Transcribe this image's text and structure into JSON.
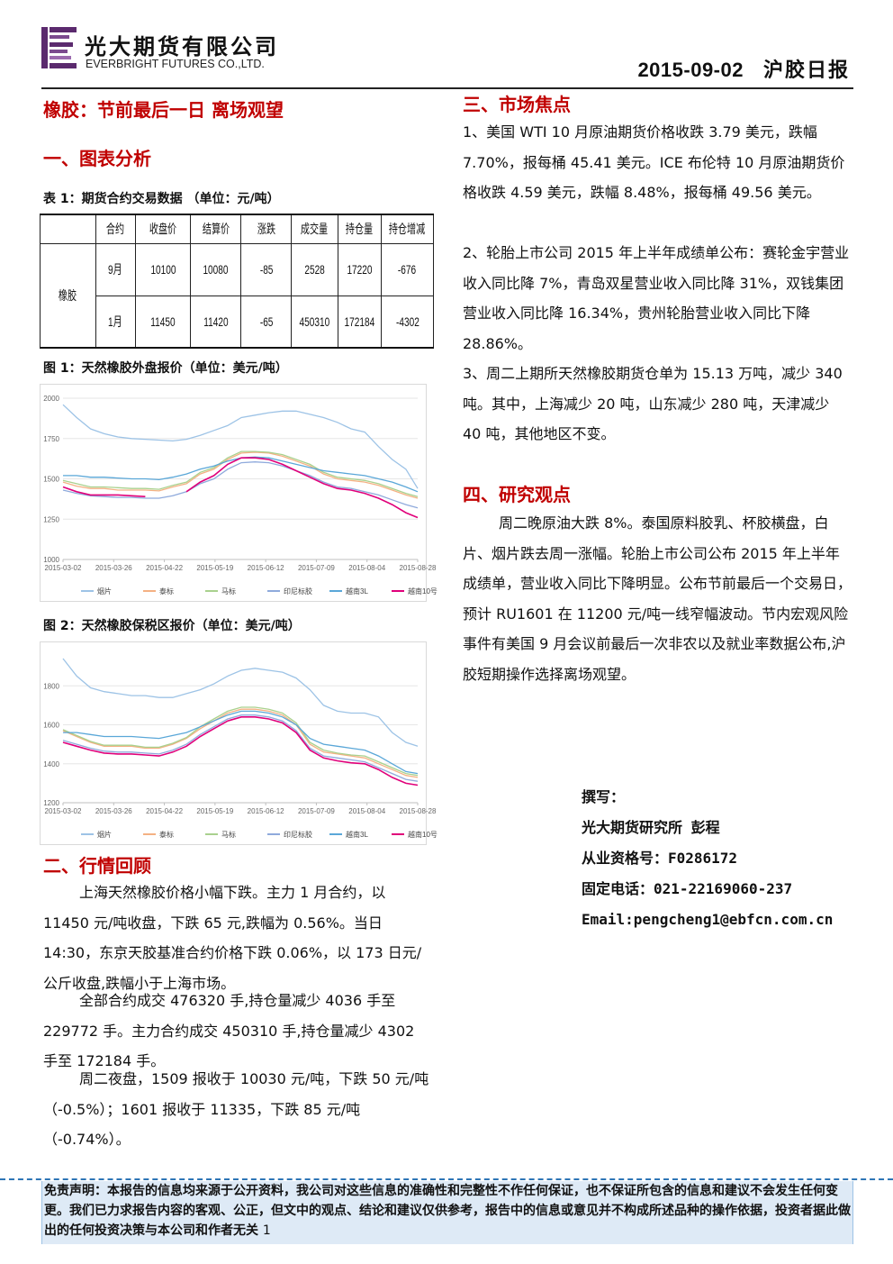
{
  "header": {
    "company_cn": "光大期货有限公司",
    "company_en": "EVERBRIGHT FUTURES CO.,LTD.",
    "date": "2015-09-02",
    "report_name": "沪胶日报",
    "brand_color": "#5b2a6e"
  },
  "main_title": "橡胶：节前最后一日  离场观望",
  "sections": {
    "s1": "一、图表分析",
    "s2": "二、行情回顾",
    "s3": "三、市场焦点",
    "s4": "四、研究观点"
  },
  "table1": {
    "caption": "表 1：期货合约交易数据 （单位：元/吨）",
    "headers": [
      "合约",
      "收盘价",
      "结算价",
      "涨跌",
      "成交量",
      "持仓量",
      "持仓增减"
    ],
    "group_label": "橡胶",
    "rows": [
      [
        "9月",
        "10100",
        "10080",
        "-85",
        "2528",
        "17220",
        "-676"
      ],
      [
        "1月",
        "11450",
        "11420",
        "-65",
        "450310",
        "172184",
        "-4302"
      ]
    ]
  },
  "chart_data": [
    {
      "type": "line",
      "caption": "图 1：天然橡胶外盘报价（单位：美元/吨）",
      "x_ticks": [
        "2015-03-02",
        "2015-03-26",
        "2015-04-22",
        "2015-05-19",
        "2015-06-12",
        "2015-07-09",
        "2015-08-04",
        "2015-08-28"
      ],
      "y_ticks": [
        1000,
        1250,
        1500,
        1750,
        2000
      ],
      "ylim": [
        1000,
        2000
      ],
      "legend": [
        "烟片",
        "泰标",
        "马标",
        "印尼标胶",
        "越南3L",
        "越南10号"
      ],
      "legend_position": "bottom",
      "colors": [
        "#9dc3e6",
        "#f4b183",
        "#a9d18e",
        "#8faadc",
        "#5aa7d8",
        "#e0007a"
      ],
      "x": [
        0,
        7,
        14,
        21,
        28,
        35,
        42,
        49,
        56,
        63,
        70,
        77,
        84,
        91,
        98,
        105,
        112,
        119,
        126,
        133,
        140,
        147,
        154,
        161,
        168,
        175,
        181
      ],
      "series": [
        {
          "name": "烟片",
          "values": [
            1960,
            1880,
            1810,
            1780,
            1760,
            1750,
            1745,
            1740,
            1735,
            1745,
            1770,
            1800,
            1830,
            1880,
            1895,
            1910,
            1920,
            1920,
            1900,
            1880,
            1850,
            1810,
            1790,
            1700,
            1620,
            1560,
            1440
          ]
        },
        {
          "name": "泰标",
          "values": [
            1480,
            1455,
            1440,
            1440,
            1430,
            1430,
            1430,
            1425,
            1450,
            1470,
            1530,
            1560,
            1620,
            1660,
            1665,
            1660,
            1640,
            1610,
            1580,
            1530,
            1500,
            1490,
            1480,
            1460,
            1430,
            1400,
            1380
          ]
        },
        {
          "name": "马标",
          "values": [
            1490,
            1470,
            1450,
            1450,
            1445,
            1440,
            1440,
            1435,
            1460,
            1480,
            1540,
            1570,
            1630,
            1670,
            1670,
            1665,
            1650,
            1620,
            1590,
            1540,
            1510,
            1500,
            1490,
            1470,
            1440,
            1410,
            1390
          ]
        },
        {
          "name": "印尼标胶",
          "values": [
            1430,
            1410,
            1395,
            1390,
            1385,
            1385,
            1380,
            1380,
            1395,
            1420,
            1470,
            1500,
            1560,
            1600,
            1605,
            1600,
            1580,
            1550,
            1520,
            1480,
            1450,
            1440,
            1420,
            1400,
            1370,
            1340,
            1320
          ]
        },
        {
          "name": "越南3L",
          "values": [
            1520,
            1520,
            1510,
            1510,
            1505,
            1500,
            1500,
            1495,
            1510,
            1530,
            1560,
            1580,
            1610,
            1630,
            1635,
            1630,
            1610,
            1590,
            1570,
            1550,
            1540,
            1530,
            1520,
            1500,
            1480,
            1450,
            1420
          ]
        },
        {
          "name": "越南10号",
          "values": [
            1450,
            1420,
            1400,
            1400,
            1400,
            1395,
            1390,
            null,
            null,
            1420,
            1480,
            1520,
            1590,
            1630,
            1630,
            1620,
            1590,
            1550,
            1510,
            1470,
            1440,
            1430,
            1410,
            1380,
            1340,
            1290,
            1260
          ]
        }
      ]
    },
    {
      "type": "line",
      "caption": "图 2：天然橡胶保税区报价（单位：美元/吨）",
      "x_ticks": [
        "2015-03-02",
        "2015-03-26",
        "2015-04-22",
        "2015-05-19",
        "2015-06-12",
        "2015-07-09",
        "2015-08-04",
        "2015-08-28"
      ],
      "y_ticks": [
        1200,
        1400,
        1600,
        1800
      ],
      "ylim": [
        1200,
        2000
      ],
      "legend": [
        "烟片",
        "泰标",
        "马标",
        "印尼标胶",
        "越南3L",
        "越南10号"
      ],
      "legend_position": "bottom",
      "colors": [
        "#9dc3e6",
        "#f4b183",
        "#a9d18e",
        "#8faadc",
        "#5aa7d8",
        "#e0007a"
      ],
      "x": [
        0,
        7,
        14,
        21,
        28,
        35,
        42,
        49,
        56,
        63,
        70,
        77,
        84,
        91,
        98,
        105,
        112,
        119,
        126,
        133,
        140,
        147,
        154,
        161,
        168,
        175,
        181
      ],
      "series": [
        {
          "name": "烟片",
          "values": [
            1940,
            1850,
            1790,
            1770,
            1760,
            1750,
            1750,
            1740,
            1740,
            1760,
            1780,
            1810,
            1850,
            1880,
            1890,
            1880,
            1870,
            1840,
            1780,
            1700,
            1670,
            1660,
            1660,
            1640,
            1560,
            1510,
            1490
          ]
        },
        {
          "name": "泰标",
          "values": [
            1570,
            1540,
            1510,
            1490,
            1490,
            1490,
            1480,
            1480,
            1500,
            1530,
            1580,
            1620,
            1660,
            1680,
            1680,
            1670,
            1650,
            1600,
            1500,
            1460,
            1450,
            1440,
            1430,
            1400,
            1370,
            1340,
            1330
          ]
        },
        {
          "name": "马标",
          "values": [
            1575,
            1545,
            1515,
            1495,
            1495,
            1495,
            1485,
            1485,
            1505,
            1535,
            1590,
            1630,
            1670,
            1690,
            1690,
            1680,
            1660,
            1610,
            1510,
            1470,
            1455,
            1445,
            1440,
            1410,
            1380,
            1350,
            1340
          ]
        },
        {
          "name": "印尼标胶",
          "values": [
            1520,
            1500,
            1480,
            1465,
            1460,
            1460,
            1455,
            1450,
            1470,
            1500,
            1550,
            1590,
            1630,
            1650,
            1650,
            1640,
            1620,
            1570,
            1480,
            1440,
            1430,
            1420,
            1410,
            1380,
            1350,
            1320,
            1310
          ]
        },
        {
          "name": "越南3L",
          "values": [
            1560,
            1560,
            1550,
            1540,
            1540,
            1540,
            1535,
            1530,
            1545,
            1560,
            1590,
            1620,
            1650,
            1670,
            1670,
            1660,
            1640,
            1600,
            1530,
            1500,
            1490,
            1480,
            1470,
            1440,
            1400,
            1360,
            1350
          ]
        },
        {
          "name": "越南10号",
          "values": [
            1510,
            1490,
            1470,
            1455,
            1450,
            1450,
            1445,
            1440,
            1460,
            1490,
            1540,
            1580,
            1620,
            1640,
            1640,
            1630,
            1610,
            1560,
            1470,
            1430,
            1415,
            1405,
            1400,
            1370,
            1330,
            1300,
            1290
          ]
        }
      ]
    }
  ],
  "review": {
    "p1": "上海天然橡胶价格小幅下跌。主力 1 月合约，以 11450 元/吨收盘，下跌 65 元,跌幅为 0.56%。当日 14:30，东京天胶基准合约价格下跌 0.06%，以 173 日元/公斤收盘,跌幅小于上海市场。",
    "p2": "全部合约成交 476320 手,持仓量减少 4036 手至 229772 手。主力合约成交 450310 手,持仓量减少 4302 手至 172184 手。",
    "p3": "周二夜盘，1509 报收于 10030 元/吨，下跌 50 元/吨（-0.5%）；1601 报收于 11335，下跌 85 元/吨（-0.74%）。"
  },
  "focus": {
    "p1": "1、美国 WTI 10 月原油期货价格收跌 3.79 美元，跌幅 7.70%，报每桶 45.41 美元。ICE 布伦特 10 月原油期货价格收跌 4.59 美元，跌幅 8.48%，报每桶 49.56 美元。",
    "p2": "2、轮胎上市公司 2015 年上半年成绩单公布：赛轮金宇营业收入同比降 7%，青岛双星营业收入同比降 31%，双钱集团营业收入同比降 16.34%，贵州轮胎营业收入同比下降 28.86%。",
    "p3": "3、周二上期所天然橡胶期货仓单为 15.13 万吨，减少 340 吨。其中，上海减少 20 吨，山东减少 280 吨，天津减少 40 吨，其他地区不变。"
  },
  "view": {
    "p1": "周二晚原油大跌 8%。泰国原料胶乳、杯胶横盘，白片、烟片跌去周一涨幅。轮胎上市公司公布 2015 年上半年成绩单，营业收入同比下降明显。公布节前最后一个交易日，预计 RU1601 在 11200 元/吨一线窄幅波动。节内宏观风险事件有美国 9 月会议前最后一次非农以及就业率数据公布,沪胶短期操作选择离场观望。"
  },
  "author": {
    "l1": "撰写：",
    "l2": "光大期货研究所 彭程",
    "l3": "从业资格号：F0286172",
    "l4": "固定电话：021-22169060-237",
    "l5": "Email:pengcheng1@ebfcn.com.cn"
  },
  "footer": {
    "disclaimer": "免责声明：本报告的信息均来源于公开资料，我公司对这些信息的准确性和完整性不作任何保证，也不保证所包含的信息和建议不会发生任何变更。我们已力求报告内容的客观、公正，但文中的观点、结论和建议仅供参考，报告中的信息或意见并不构成所述品种的操作依据，投资者据此做出的任何投资决策与本公司和作者无关",
    "page": "1"
  }
}
